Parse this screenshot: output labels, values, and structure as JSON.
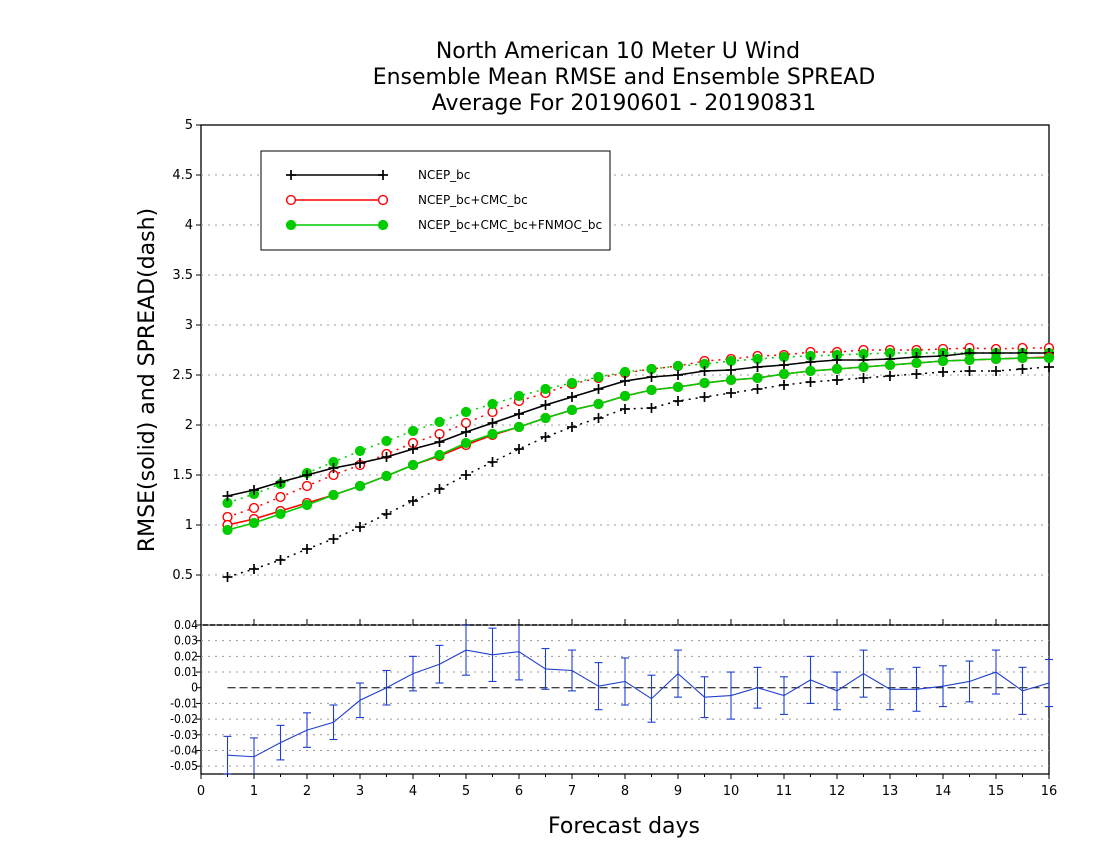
{
  "chart_data": [
    {
      "type": "line",
      "title": "North American 10 Meter U Wind",
      "subtitle": "Ensemble Mean RMSE and Ensemble SPREAD",
      "subtitle2": "Average For 20190601 - 20190831",
      "xlabel": "Forecast days",
      "ylabel": "RMSE(solid)  and  SPREAD(dash)",
      "xlim": [
        0,
        16
      ],
      "ylim": [
        0,
        5
      ],
      "x_ticks": [
        "0",
        "1",
        "2",
        "3",
        "4",
        "5",
        "6",
        "7",
        "8",
        "9",
        "10",
        "11",
        "12",
        "13",
        "14",
        "15",
        "16"
      ],
      "y_ticks": [
        "0.5",
        "1",
        "1.5",
        "2",
        "2.5",
        "3",
        "3.5",
        "4",
        "4.5",
        "5"
      ],
      "grid": "horizontal dotted",
      "legend_position": "top-left",
      "x": [
        0.5,
        1,
        1.5,
        2,
        2.5,
        3,
        3.5,
        4,
        4.5,
        5,
        5.5,
        6,
        6.5,
        7,
        7.5,
        8,
        8.5,
        9,
        9.5,
        10,
        10.5,
        11,
        11.5,
        12,
        12.5,
        13,
        13.5,
        14,
        14.5,
        15,
        15.5,
        16
      ],
      "series": [
        {
          "name": "NCEP_bc",
          "color": "#000000",
          "rmse": [
            1.29,
            1.35,
            1.43,
            1.5,
            1.57,
            1.62,
            1.68,
            1.76,
            1.83,
            1.93,
            2.02,
            2.11,
            2.2,
            2.28,
            2.36,
            2.44,
            2.48,
            2.5,
            2.54,
            2.55,
            2.58,
            2.6,
            2.63,
            2.65,
            2.65,
            2.66,
            2.68,
            2.69,
            2.72,
            2.72,
            2.72,
            2.72
          ],
          "spread": [
            0.48,
            0.56,
            0.65,
            0.76,
            0.86,
            0.98,
            1.11,
            1.24,
            1.36,
            1.5,
            1.63,
            1.76,
            1.88,
            1.98,
            2.07,
            2.16,
            2.17,
            2.24,
            2.28,
            2.32,
            2.36,
            2.4,
            2.43,
            2.45,
            2.47,
            2.49,
            2.51,
            2.53,
            2.54,
            2.54,
            2.56,
            2.58
          ]
        },
        {
          "name": "NCEP_bc+CMC_bc",
          "color": "#ff0000",
          "rmse": [
            1.0,
            1.06,
            1.14,
            1.22,
            1.3,
            1.39,
            1.49,
            1.6,
            1.69,
            1.8,
            1.9,
            1.98,
            2.07,
            2.15,
            2.21,
            2.29,
            2.35,
            2.38,
            2.42,
            2.45,
            2.47,
            2.51,
            2.54,
            2.56,
            2.58,
            2.6,
            2.62,
            2.64,
            2.65,
            2.66,
            2.67,
            2.68
          ],
          "spread": [
            1.08,
            1.17,
            1.28,
            1.39,
            1.5,
            1.6,
            1.71,
            1.82,
            1.91,
            2.02,
            2.13,
            2.24,
            2.32,
            2.41,
            2.47,
            2.52,
            2.56,
            2.59,
            2.64,
            2.66,
            2.69,
            2.7,
            2.73,
            2.73,
            2.75,
            2.75,
            2.75,
            2.76,
            2.77,
            2.76,
            2.77,
            2.77
          ]
        },
        {
          "name": "NCEP_bc+CMC_bc+FNMOC_bc",
          "color": "#00cc00",
          "rmse": [
            0.95,
            1.02,
            1.11,
            1.2,
            1.3,
            1.39,
            1.49,
            1.6,
            1.7,
            1.82,
            1.91,
            1.98,
            2.07,
            2.15,
            2.21,
            2.29,
            2.35,
            2.38,
            2.42,
            2.45,
            2.47,
            2.51,
            2.54,
            2.56,
            2.58,
            2.6,
            2.62,
            2.64,
            2.65,
            2.66,
            2.67,
            2.67
          ],
          "spread": [
            1.22,
            1.31,
            1.41,
            1.52,
            1.63,
            1.74,
            1.84,
            1.94,
            2.03,
            2.13,
            2.21,
            2.29,
            2.36,
            2.42,
            2.48,
            2.53,
            2.56,
            2.59,
            2.61,
            2.64,
            2.66,
            2.68,
            2.69,
            2.7,
            2.71,
            2.72,
            2.72,
            2.72,
            2.72,
            2.72,
            2.72,
            2.72
          ]
        }
      ]
    },
    {
      "type": "line",
      "xlim": [
        0,
        16
      ],
      "ylim": [
        -0.055,
        0.04
      ],
      "y_ticks": [
        "0.04",
        "0.03",
        "0.02",
        "0.01",
        "0",
        "-0.01",
        "-0.02",
        "-0.03",
        "-0.04",
        "-0.05"
      ],
      "grid": "horizontal dotted",
      "zero_line": "dashed",
      "color": "#1f3fcf",
      "x": [
        0.5,
        1,
        1.5,
        2,
        2.5,
        3,
        3.5,
        4,
        4.5,
        5,
        5.5,
        6,
        6.5,
        7,
        7.5,
        8,
        8.5,
        9,
        9.5,
        10,
        10.5,
        11,
        11.5,
        12,
        12.5,
        13,
        13.5,
        14,
        14.5,
        15,
        15.5,
        16
      ],
      "values": [
        -0.043,
        -0.044,
        -0.035,
        -0.027,
        -0.022,
        -0.008,
        0.0,
        0.009,
        0.015,
        0.024,
        0.021,
        0.023,
        0.012,
        0.011,
        0.001,
        0.004,
        -0.007,
        0.009,
        -0.006,
        -0.005,
        0.0,
        -0.005,
        0.005,
        -0.002,
        0.009,
        -0.001,
        -0.001,
        0.001,
        0.004,
        0.01,
        -0.002,
        0.003
      ],
      "error": [
        0.012,
        0.012,
        0.011,
        0.011,
        0.011,
        0.011,
        0.011,
        0.011,
        0.012,
        0.016,
        0.017,
        0.018,
        0.013,
        0.013,
        0.015,
        0.015,
        0.015,
        0.015,
        0.013,
        0.015,
        0.013,
        0.012,
        0.015,
        0.012,
        0.015,
        0.013,
        0.014,
        0.013,
        0.013,
        0.014,
        0.015,
        0.015
      ]
    }
  ]
}
